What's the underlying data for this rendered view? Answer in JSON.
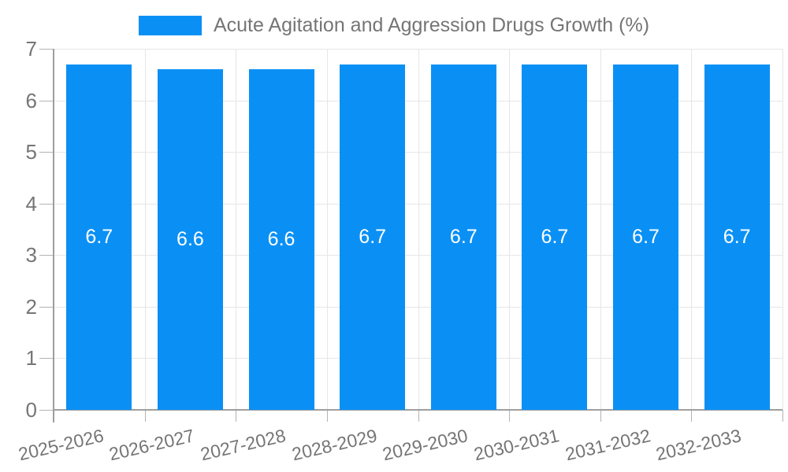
{
  "legend": {
    "label": "Acute Agitation and Aggression Drugs Growth (%)"
  },
  "colors": {
    "bar": "#0a90f5",
    "text": "#757575",
    "value_label": "#ffffff",
    "grid": "#e6e6e6",
    "axis": "#9e9e9e",
    "tick": "#b3b3b3"
  },
  "chart_data": {
    "type": "bar",
    "title": "Acute Agitation and Aggression Drugs Growth (%)",
    "categories": [
      "2025-2026",
      "2026-2027",
      "2027-2028",
      "2028-2029",
      "2029-2030",
      "2030-2031",
      "2031-2032",
      "2032-2033"
    ],
    "values": [
      6.7,
      6.6,
      6.6,
      6.7,
      6.7,
      6.7,
      6.7,
      6.7
    ],
    "value_labels": [
      "6.7",
      "6.6",
      "6.6",
      "6.7",
      "6.7",
      "6.7",
      "6.7",
      "6.7"
    ],
    "xlabel": "",
    "ylabel": "",
    "ylim": [
      0,
      7
    ],
    "yticks": [
      0,
      1,
      2,
      3,
      4,
      5,
      6,
      7
    ],
    "grid": true,
    "legend_position": "top-center",
    "value_label_position": "center-of-bar"
  }
}
